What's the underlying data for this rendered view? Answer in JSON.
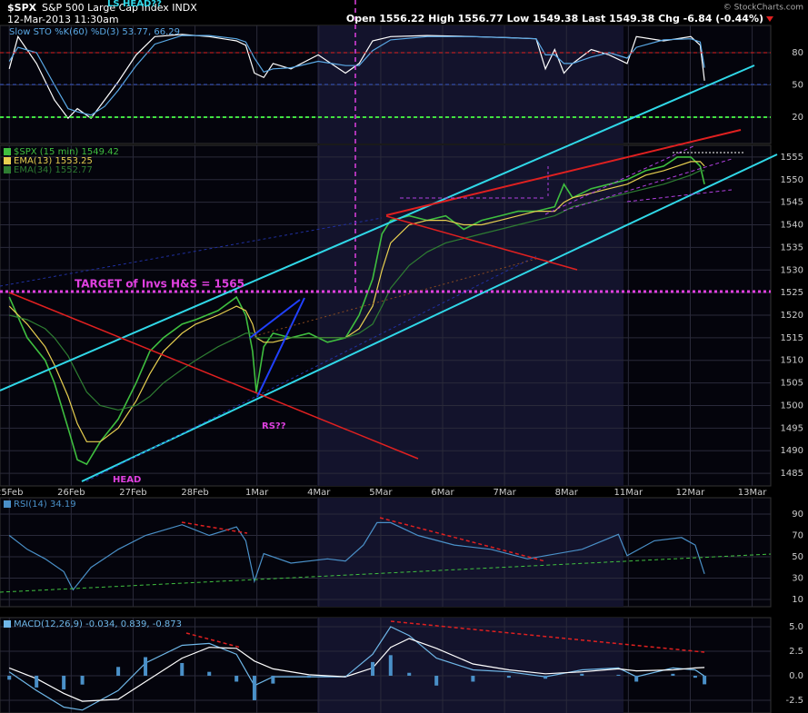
{
  "header": {
    "symbol": "$SPX",
    "name": "S&P 500 Large Cap Index  INDX",
    "datetime": "12-Mar-2013 11:30am",
    "quote": "Open 1556.22  High 1556.77  Low 1549.38  Last 1549.38  Chg -6.84 (-0.44%)",
    "credit": "© StockCharts.com"
  },
  "chart_data": [
    {
      "type": "line",
      "title": "Slow STO %K(60) %D(3) 53.77, 66.29",
      "x": [
        0,
        0.14,
        0.44,
        0.73,
        0.95,
        1.1,
        1.32,
        1.54,
        1.76,
        2.05,
        2.35,
        2.79,
        3.23,
        3.67,
        3.82,
        3.96,
        4.11,
        4.26,
        4.55,
        4.99,
        5.43,
        5.65,
        5.87,
        6.16,
        6.75,
        7.49,
        8.07,
        8.51,
        8.66,
        8.81,
        8.96,
        9.1,
        9.4,
        9.69,
        9.98,
        10.13,
        10.57,
        11.01,
        11.16,
        11.23
      ],
      "series": [
        {
          "color": "#ffffff",
          "values": [
            65,
            95,
            70,
            36,
            19,
            28,
            19,
            36,
            53,
            78,
            95,
            97,
            95,
            91,
            87,
            61,
            57,
            70,
            65,
            78,
            61,
            70,
            91,
            95,
            96,
            95,
            94,
            93,
            65,
            83,
            61,
            70,
            83,
            78,
            70,
            95,
            91,
            95,
            87,
            54
          ]
        },
        {
          "color": "#5aa9e6",
          "values": [
            72,
            85,
            80,
            50,
            28,
            25,
            22,
            30,
            45,
            68,
            88,
            96,
            96,
            93,
            90,
            75,
            62,
            65,
            66,
            72,
            68,
            68,
            82,
            92,
            95,
            95,
            94,
            93,
            78,
            78,
            70,
            70,
            76,
            80,
            75,
            85,
            92,
            93,
            90,
            66
          ]
        }
      ],
      "xlim": [
        -0.15,
        12.3
      ],
      "ylim": [
        -4.5,
        105.4
      ],
      "yticks": [
        20,
        50,
        80
      ]
    },
    {
      "type": "line",
      "x": [
        0,
        0.29,
        0.58,
        0.73,
        0.95,
        1.1,
        1.25,
        1.47,
        1.76,
        2.05,
        2.27,
        2.49,
        2.79,
        3.01,
        3.37,
        3.67,
        3.82,
        3.93,
        3.99,
        4.11,
        4.26,
        4.55,
        4.84,
        5.14,
        5.43,
        5.65,
        5.87,
        6.02,
        6.16,
        6.46,
        6.75,
        7.05,
        7.34,
        7.63,
        7.93,
        8.22,
        8.51,
        8.81,
        8.96,
        9.1,
        9.4,
        9.69,
        9.98,
        10.28,
        10.57,
        10.79,
        11.01,
        11.16,
        11.23
      ],
      "series": [
        {
          "name": "$SPX (15 min) 1549.42",
          "color": "#3fbf3f",
          "values": [
            1524,
            1515,
            1510,
            1505,
            1495,
            1488,
            1487,
            1492,
            1497,
            1505,
            1512,
            1515,
            1518,
            1519,
            1521,
            1524,
            1520,
            1512,
            1503,
            1513,
            1516,
            1515,
            1516,
            1514,
            1515,
            1520,
            1528,
            1538,
            1541,
            1542,
            1541,
            1542,
            1539,
            1541,
            1542,
            1543,
            1543,
            1544,
            1549,
            1546,
            1548,
            1549,
            1550,
            1552,
            1553,
            1555,
            1555,
            1553,
            1549
          ]
        },
        {
          "name": "EMA(13) 1553.25",
          "color": "#e8d050",
          "values": [
            1522,
            1518,
            1513,
            1509,
            1502,
            1496,
            1492,
            1492,
            1495,
            1501,
            1507,
            1512,
            1516,
            1518,
            1520,
            1522,
            1521,
            1518,
            1515,
            1514,
            1514,
            1515,
            1515,
            1515,
            1515,
            1517,
            1522,
            1530,
            1536,
            1540,
            1541,
            1541,
            1540,
            1540,
            1541,
            1542,
            1543,
            1543,
            1545,
            1546,
            1547,
            1548,
            1549,
            1551,
            1552,
            1553,
            1554,
            1554,
            1553
          ]
        },
        {
          "name": "EMA(34) 1552.77",
          "color": "#2e7d32",
          "values": [
            1520,
            1519,
            1517,
            1515,
            1511,
            1507,
            1503,
            1500,
            1499,
            1500,
            1502,
            1505,
            1508,
            1510,
            1513,
            1515,
            1516,
            1516,
            1515,
            1515,
            1515,
            1515,
            1515,
            1515,
            1515,
            1516,
            1518,
            1522,
            1526,
            1531,
            1534,
            1536,
            1537,
            1538,
            1539,
            1540,
            1541,
            1542,
            1543,
            1544,
            1545,
            1546,
            1547,
            1548,
            1549,
            1550,
            1551,
            1552,
            1552
          ]
        }
      ],
      "xlim": [
        -0.15,
        12.3
      ],
      "ylim": [
        1482.2,
        1557.6
      ],
      "yticks": [
        1485,
        1490,
        1495,
        1500,
        1505,
        1510,
        1515,
        1520,
        1525,
        1530,
        1535,
        1540,
        1545,
        1550,
        1555
      ],
      "xticks": [
        {
          "value": 0,
          "label": "25Feb"
        },
        {
          "value": 1,
          "label": "26Feb"
        },
        {
          "value": 2,
          "label": "27Feb"
        },
        {
          "value": 3,
          "label": "28Feb"
        },
        {
          "value": 4,
          "label": "1Mar"
        },
        {
          "value": 5,
          "label": "4Mar"
        },
        {
          "value": 6,
          "label": "5Mar"
        },
        {
          "value": 7,
          "label": "6Mar"
        },
        {
          "value": 8,
          "label": "7Mar"
        },
        {
          "value": 9,
          "label": "8Mar"
        },
        {
          "value": 10,
          "label": "11Mar"
        },
        {
          "value": 11,
          "label": "12Mar"
        },
        {
          "value": 12,
          "label": "13Mar"
        }
      ],
      "annotations": [
        "TARGET of Invs H&S = 1565",
        "RS??",
        "HEAD",
        "LS HEAD??"
      ]
    },
    {
      "type": "line",
      "x": [
        0,
        0.29,
        0.58,
        0.88,
        1.03,
        1.32,
        1.76,
        2.2,
        2.79,
        3.23,
        3.67,
        3.82,
        3.96,
        4.11,
        4.55,
        5.14,
        5.43,
        5.72,
        5.94,
        6.16,
        6.6,
        7.19,
        7.78,
        8.37,
        8.66,
        9.25,
        9.84,
        9.98,
        10.42,
        10.86,
        11.08,
        11.23
      ],
      "series": [
        {
          "name": "RSI(14) 34.19",
          "color": "#4a90c8",
          "values": [
            70,
            57,
            48,
            36,
            19,
            40,
            57,
            70,
            80,
            70,
            78,
            65,
            27,
            53,
            44,
            48,
            46,
            61,
            82,
            82,
            70,
            61,
            57,
            48,
            51,
            57,
            71,
            51,
            65,
            68,
            61,
            34
          ]
        }
      ],
      "xlim": [
        -0.15,
        12.3
      ],
      "ylim": [
        3.2,
        105.3
      ],
      "yticks": [
        10,
        30,
        50,
        70,
        90
      ]
    },
    {
      "type": "line",
      "x": [
        0,
        0.44,
        0.88,
        1.18,
        1.76,
        2.2,
        2.79,
        3.23,
        3.67,
        3.96,
        4.26,
        4.84,
        5.43,
        5.87,
        6.16,
        6.46,
        6.9,
        7.49,
        8.07,
        8.66,
        9.25,
        9.84,
        10.13,
        10.72,
        11.08,
        11.23
      ],
      "series": [
        {
          "name": "MACD(12,26,9) -0.034, 0.839, -0.873",
          "color": "#6fb7e8",
          "values": [
            0.4,
            -1.5,
            -3.2,
            -3.5,
            -1.5,
            1.3,
            3.1,
            3.3,
            2.2,
            -1.0,
            -0.1,
            -0.1,
            -0.1,
            2.2,
            5.0,
            4.1,
            1.8,
            0.6,
            0.4,
            -0.1,
            0.6,
            0.8,
            -0.1,
            0.8,
            0.6,
            -0.034
          ]
        },
        {
          "color": "#ffffff",
          "values": [
            0.8,
            -0.3,
            -1.8,
            -2.6,
            -2.4,
            -0.6,
            1.8,
            2.9,
            2.8,
            1.5,
            0.7,
            0.1,
            -0.1,
            0.8,
            2.9,
            3.8,
            2.8,
            1.2,
            0.6,
            0.2,
            0.4,
            0.7,
            0.5,
            0.6,
            0.8,
            0.839
          ]
        },
        {
          "color": "#4a90c8",
          "style": "bar",
          "values": [
            -0.4,
            -1.2,
            -1.4,
            -0.9,
            0.9,
            1.9,
            1.3,
            0.4,
            -0.6,
            -2.5,
            -0.8,
            -0.2,
            0,
            1.4,
            2.1,
            0.3,
            -1.0,
            -0.6,
            -0.2,
            -0.3,
            0.2,
            0.1,
            -0.6,
            0.2,
            -0.2,
            -0.873
          ]
        }
      ],
      "xlim": [
        -0.15,
        12.3
      ],
      "ylim": [
        -3.8,
        5.93
      ],
      "yticks": [
        {
          "value": -2.5,
          "label": "-2.5"
        },
        {
          "value": 0,
          "label": "0.0"
        },
        {
          "value": 2.5,
          "label": "2.5"
        },
        {
          "value": 5,
          "label": "5.0"
        }
      ]
    }
  ]
}
